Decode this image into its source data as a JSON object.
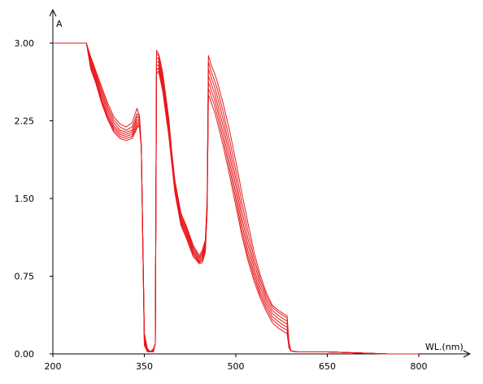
{
  "chart_data": {
    "type": "line",
    "title": "",
    "xlabel": "WL.(nm)",
    "ylabel": "A",
    "xlim": [
      200,
      850
    ],
    "ylim": [
      0,
      3.15
    ],
    "xticks": [
      200,
      350,
      500,
      650,
      800
    ],
    "yticks": [
      0,
      0.75,
      1.5,
      2.25,
      3.0
    ],
    "xtick_labels": [
      "200",
      "350",
      "500",
      "650",
      "800"
    ],
    "ytick_labels": [
      "0.00",
      "0.75",
      "1.50",
      "2.25",
      "3.00"
    ],
    "grid": false,
    "legend": "none",
    "line_color": "#e8191c",
    "x": [
      200,
      255,
      262,
      270,
      280,
      290,
      300,
      310,
      320,
      330,
      335,
      338,
      340,
      342,
      345,
      350,
      355,
      360,
      365,
      368,
      370,
      373,
      375,
      380,
      385,
      390,
      395,
      400,
      410,
      420,
      430,
      440,
      445,
      450,
      453,
      455,
      458,
      460,
      465,
      470,
      480,
      490,
      500,
      510,
      520,
      530,
      540,
      550,
      560,
      570,
      580,
      584,
      587,
      590,
      600,
      620,
      650,
      700,
      750,
      800
    ],
    "series": [
      {
        "values": [
          3.0,
          3.0,
          2.87,
          2.74,
          2.58,
          2.42,
          2.29,
          2.22,
          2.19,
          2.23,
          2.32,
          2.37,
          2.33,
          2.3,
          2.0,
          0.2,
          0.05,
          0.02,
          0.05,
          0.1,
          2.93,
          2.9,
          2.86,
          2.72,
          2.5,
          2.28,
          1.95,
          1.68,
          1.36,
          1.22,
          1.05,
          0.95,
          1.0,
          1.1,
          1.5,
          2.88,
          2.82,
          2.78,
          2.71,
          2.62,
          2.4,
          2.15,
          1.86,
          1.55,
          1.26,
          0.98,
          0.76,
          0.59,
          0.47,
          0.42,
          0.38,
          0.37,
          0.12,
          0.03,
          0.02,
          0.02,
          0.02,
          0.01,
          0.0,
          0.0
        ]
      },
      {
        "values": [
          3.0,
          3.0,
          2.85,
          2.72,
          2.55,
          2.39,
          2.26,
          2.19,
          2.16,
          2.19,
          2.27,
          2.32,
          2.3,
          2.28,
          2.0,
          0.18,
          0.05,
          0.02,
          0.05,
          0.1,
          2.9,
          2.88,
          2.83,
          2.69,
          2.47,
          2.25,
          1.93,
          1.66,
          1.34,
          1.2,
          1.03,
          0.93,
          0.98,
          1.08,
          1.48,
          2.82,
          2.76,
          2.72,
          2.64,
          2.55,
          2.32,
          2.06,
          1.77,
          1.46,
          1.18,
          0.92,
          0.72,
          0.56,
          0.45,
          0.4,
          0.36,
          0.35,
          0.11,
          0.03,
          0.02,
          0.02,
          0.02,
          0.01,
          0.0,
          0.0
        ]
      },
      {
        "values": [
          3.0,
          3.0,
          2.83,
          2.7,
          2.52,
          2.36,
          2.23,
          2.16,
          2.14,
          2.16,
          2.24,
          2.29,
          2.28,
          2.26,
          2.0,
          0.16,
          0.04,
          0.02,
          0.04,
          0.1,
          2.86,
          2.85,
          2.8,
          2.66,
          2.44,
          2.22,
          1.91,
          1.64,
          1.32,
          1.18,
          1.01,
          0.92,
          0.96,
          1.06,
          1.46,
          2.75,
          2.7,
          2.66,
          2.58,
          2.48,
          2.25,
          1.98,
          1.69,
          1.38,
          1.11,
          0.87,
          0.68,
          0.53,
          0.42,
          0.37,
          0.33,
          0.32,
          0.1,
          0.03,
          0.02,
          0.02,
          0.02,
          0.01,
          0.0,
          0.0
        ]
      },
      {
        "values": [
          3.0,
          3.0,
          2.81,
          2.68,
          2.49,
          2.33,
          2.2,
          2.14,
          2.12,
          2.14,
          2.21,
          2.26,
          2.26,
          2.24,
          2.0,
          0.14,
          0.04,
          0.02,
          0.04,
          0.1,
          2.82,
          2.82,
          2.77,
          2.63,
          2.41,
          2.2,
          1.89,
          1.62,
          1.3,
          1.16,
          0.99,
          0.9,
          0.94,
          1.04,
          1.44,
          2.68,
          2.64,
          2.6,
          2.52,
          2.41,
          2.18,
          1.91,
          1.62,
          1.31,
          1.05,
          0.82,
          0.64,
          0.5,
          0.39,
          0.34,
          0.3,
          0.29,
          0.09,
          0.03,
          0.02,
          0.02,
          0.02,
          0.01,
          0.0,
          0.0
        ]
      },
      {
        "values": [
          3.0,
          3.0,
          2.79,
          2.66,
          2.46,
          2.3,
          2.18,
          2.12,
          2.1,
          2.12,
          2.18,
          2.23,
          2.24,
          2.22,
          2.0,
          0.12,
          0.03,
          0.02,
          0.03,
          0.1,
          2.78,
          2.79,
          2.74,
          2.6,
          2.38,
          2.17,
          1.87,
          1.6,
          1.28,
          1.14,
          0.98,
          0.89,
          0.92,
          1.02,
          1.42,
          2.62,
          2.58,
          2.54,
          2.46,
          2.35,
          2.11,
          1.84,
          1.55,
          1.25,
          0.99,
          0.78,
          0.6,
          0.47,
          0.36,
          0.31,
          0.27,
          0.26,
          0.08,
          0.03,
          0.02,
          0.02,
          0.02,
          0.01,
          0.0,
          0.0
        ]
      },
      {
        "values": [
          3.0,
          3.0,
          2.77,
          2.64,
          2.44,
          2.28,
          2.16,
          2.1,
          2.08,
          2.1,
          2.16,
          2.2,
          2.22,
          2.2,
          2.0,
          0.1,
          0.03,
          0.02,
          0.03,
          0.1,
          2.74,
          2.76,
          2.71,
          2.57,
          2.35,
          2.14,
          1.85,
          1.58,
          1.26,
          1.12,
          0.96,
          0.88,
          0.9,
          1.0,
          1.4,
          2.56,
          2.52,
          2.48,
          2.4,
          2.29,
          2.05,
          1.78,
          1.49,
          1.19,
          0.94,
          0.74,
          0.57,
          0.44,
          0.33,
          0.28,
          0.24,
          0.23,
          0.07,
          0.03,
          0.02,
          0.02,
          0.02,
          0.01,
          0.0,
          0.0
        ]
      },
      {
        "values": [
          3.0,
          3.0,
          2.75,
          2.62,
          2.42,
          2.26,
          2.14,
          2.08,
          2.06,
          2.08,
          2.14,
          2.18,
          2.2,
          2.18,
          2.0,
          0.08,
          0.02,
          0.02,
          0.02,
          0.1,
          2.7,
          2.73,
          2.68,
          2.54,
          2.32,
          2.11,
          1.83,
          1.56,
          1.24,
          1.1,
          0.94,
          0.87,
          0.88,
          0.98,
          1.38,
          2.5,
          2.46,
          2.42,
          2.34,
          2.23,
          1.99,
          1.72,
          1.43,
          1.14,
          0.9,
          0.7,
          0.54,
          0.41,
          0.3,
          0.25,
          0.21,
          0.2,
          0.06,
          0.03,
          0.02,
          0.02,
          0.02,
          0.01,
          0.0,
          0.0
        ]
      }
    ]
  }
}
